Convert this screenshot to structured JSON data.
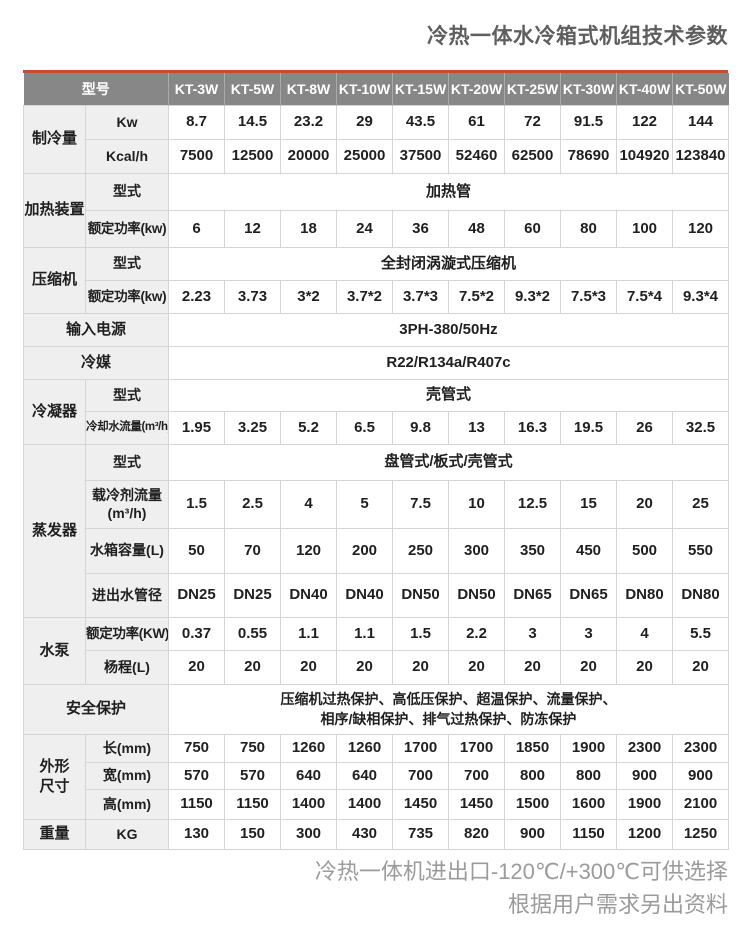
{
  "title": "冷热一体水冷箱式机组技术参数",
  "footer": {
    "line1": "冷热一体机进出口-120℃/+300℃可供选择",
    "line2": "根据用户需求另出资料"
  },
  "colors": {
    "accent": "#c94b28",
    "header_bg": "#878787",
    "header_text": "#ffffff",
    "label_bg": "#efefef",
    "border": "#d5d5d5",
    "title_text": "#5e5e5e",
    "footer_text": "#9b9b9b"
  },
  "table": {
    "header": {
      "model_label": "型号",
      "models": [
        "KT-3W",
        "KT-5W",
        "KT-8W",
        "KT-10W",
        "KT-15W",
        "KT-20W",
        "KT-25W",
        "KT-30W",
        "KT-40W",
        "KT-50W"
      ]
    },
    "rows": [
      {
        "name": "row-cooling-kw",
        "cells": [
          {
            "t": "制冷量",
            "c": "group",
            "rs": 2,
            "n": "label-cooling-capacity"
          },
          {
            "t": "Kw",
            "c": "sub",
            "n": "label-kw"
          },
          {
            "t": "8.7"
          },
          {
            "t": "14.5"
          },
          {
            "t": "23.2"
          },
          {
            "t": "29"
          },
          {
            "t": "43.5"
          },
          {
            "t": "61"
          },
          {
            "t": "72"
          },
          {
            "t": "91.5"
          },
          {
            "t": "122"
          },
          {
            "t": "144"
          }
        ]
      },
      {
        "name": "row-cooling-kcal",
        "cells": [
          {
            "t": "Kcal/h",
            "c": "sub",
            "n": "label-kcal"
          },
          {
            "t": "7500"
          },
          {
            "t": "12500"
          },
          {
            "t": "20000"
          },
          {
            "t": "25000"
          },
          {
            "t": "37500"
          },
          {
            "t": "52460"
          },
          {
            "t": "62500"
          },
          {
            "t": "78690"
          },
          {
            "t": "104920"
          },
          {
            "t": "123840"
          }
        ]
      },
      {
        "name": "row-heater-type",
        "cells": [
          {
            "t": "加热装置",
            "c": "group",
            "rs": 2,
            "n": "label-heater"
          },
          {
            "t": "型式",
            "c": "sub",
            "n": "label-type"
          },
          {
            "t": "加热管",
            "cs": 10,
            "n": "value-heater-type"
          }
        ]
      },
      {
        "name": "row-heater-power",
        "cells": [
          {
            "t": "额定功率(kw)",
            "c": "sub mid",
            "n": "label-rated-power"
          },
          {
            "t": "6"
          },
          {
            "t": "12"
          },
          {
            "t": "18"
          },
          {
            "t": "24"
          },
          {
            "t": "36"
          },
          {
            "t": "48"
          },
          {
            "t": "60"
          },
          {
            "t": "80"
          },
          {
            "t": "100"
          },
          {
            "t": "120"
          }
        ]
      },
      {
        "name": "row-compressor-type",
        "cells": [
          {
            "t": "压缩机",
            "c": "group",
            "rs": 2,
            "n": "label-compressor"
          },
          {
            "t": "型式",
            "c": "sub",
            "n": "label-type"
          },
          {
            "t": "全封闭涡漩式压缩机",
            "cs": 10,
            "n": "value-compressor-type"
          }
        ]
      },
      {
        "name": "row-compressor-power",
        "cells": [
          {
            "t": "额定功率(kw)",
            "c": "sub mid",
            "n": "label-rated-power"
          },
          {
            "t": "2.23"
          },
          {
            "t": "3.73"
          },
          {
            "t": "3*2"
          },
          {
            "t": "3.7*2"
          },
          {
            "t": "3.7*3"
          },
          {
            "t": "7.5*2"
          },
          {
            "t": "9.3*2"
          },
          {
            "t": "7.5*3"
          },
          {
            "t": "7.5*4"
          },
          {
            "t": "9.3*4"
          }
        ]
      },
      {
        "name": "row-input-power",
        "cells": [
          {
            "t": "输入电源",
            "c": "group",
            "cs": 2,
            "n": "label-input-power"
          },
          {
            "t": "3PH-380/50Hz",
            "cs": 10,
            "n": "value-input-power"
          }
        ]
      },
      {
        "name": "row-refrigerant",
        "cells": [
          {
            "t": "冷媒",
            "c": "group",
            "cs": 2,
            "n": "label-refrigerant"
          },
          {
            "t": "R22/R134a/R407c",
            "cs": 10,
            "n": "value-refrigerant"
          }
        ]
      },
      {
        "name": "row-condenser-type",
        "cells": [
          {
            "t": "冷凝器",
            "c": "group",
            "rs": 2,
            "n": "label-condenser"
          },
          {
            "t": "型式",
            "c": "sub",
            "n": "label-type"
          },
          {
            "t": "壳管式",
            "cs": 10,
            "n": "value-condenser-type"
          }
        ]
      },
      {
        "name": "row-condenser-flow",
        "cells": [
          {
            "t": "冷却水流量(m³/h)",
            "c": "sub small",
            "n": "label-cooling-water-flow"
          },
          {
            "t": "1.95"
          },
          {
            "t": "3.25"
          },
          {
            "t": "5.2"
          },
          {
            "t": "6.5"
          },
          {
            "t": "9.8"
          },
          {
            "t": "13"
          },
          {
            "t": "16.3"
          },
          {
            "t": "19.5"
          },
          {
            "t": "26"
          },
          {
            "t": "32.5"
          }
        ]
      },
      {
        "name": "row-evaporator-type",
        "cells": [
          {
            "t": "蒸发器",
            "c": "group",
            "rs": 4,
            "n": "label-evaporator"
          },
          {
            "t": "型式",
            "c": "sub",
            "n": "label-type"
          },
          {
            "t": "盘管式/板式/壳管式",
            "cs": 10,
            "n": "value-evaporator-type"
          }
        ]
      },
      {
        "name": "row-coolant-flow",
        "cells": [
          {
            "lines": [
              "载冷剂流量",
              "(m³/h)"
            ],
            "c": "sub pre",
            "n": "label-coolant-flow"
          },
          {
            "t": "1.5"
          },
          {
            "t": "2.5"
          },
          {
            "t": "4"
          },
          {
            "t": "5"
          },
          {
            "t": "7.5"
          },
          {
            "t": "10"
          },
          {
            "t": "12.5"
          },
          {
            "t": "15"
          },
          {
            "t": "20"
          },
          {
            "t": "25"
          }
        ]
      },
      {
        "name": "row-tank-capacity",
        "cells": [
          {
            "t": "水箱容量(L)",
            "c": "sub",
            "n": "label-tank-capacity"
          },
          {
            "t": "50"
          },
          {
            "t": "70"
          },
          {
            "t": "120"
          },
          {
            "t": "200"
          },
          {
            "t": "250"
          },
          {
            "t": "300"
          },
          {
            "t": "350"
          },
          {
            "t": "450"
          },
          {
            "t": "500"
          },
          {
            "t": "550"
          }
        ]
      },
      {
        "name": "row-pipe-diameter",
        "cells": [
          {
            "t": "进出水管径",
            "c": "sub",
            "n": "label-pipe-diameter"
          },
          {
            "t": "DN25"
          },
          {
            "t": "DN25"
          },
          {
            "t": "DN40"
          },
          {
            "t": "DN40"
          },
          {
            "t": "DN50"
          },
          {
            "t": "DN50"
          },
          {
            "t": "DN65"
          },
          {
            "t": "DN65"
          },
          {
            "t": "DN80"
          },
          {
            "t": "DN80"
          }
        ]
      },
      {
        "name": "row-pump-power",
        "cells": [
          {
            "t": "水泵",
            "c": "group",
            "rs": 2,
            "n": "label-pump"
          },
          {
            "t": "额定功率(KW)",
            "c": "sub mid",
            "n": "label-rated-power"
          },
          {
            "t": "0.37"
          },
          {
            "t": "0.55"
          },
          {
            "t": "1.1"
          },
          {
            "t": "1.1"
          },
          {
            "t": "1.5"
          },
          {
            "t": "2.2"
          },
          {
            "t": "3"
          },
          {
            "t": "3"
          },
          {
            "t": "4"
          },
          {
            "t": "5.5"
          }
        ]
      },
      {
        "name": "row-pump-head",
        "cells": [
          {
            "t": "杨程(L)",
            "c": "sub",
            "n": "label-pump-head"
          },
          {
            "t": "20"
          },
          {
            "t": "20"
          },
          {
            "t": "20"
          },
          {
            "t": "20"
          },
          {
            "t": "20"
          },
          {
            "t": "20"
          },
          {
            "t": "20"
          },
          {
            "t": "20"
          },
          {
            "t": "20"
          },
          {
            "t": "20"
          }
        ]
      },
      {
        "name": "row-safety",
        "cells": [
          {
            "t": "安全保护",
            "c": "group",
            "cs": 2,
            "n": "label-safety"
          },
          {
            "lines": [
              "压缩机过热保护、高低压保护、超温保护、流量保护、",
              "相序/缺相保护、排气过热保护、防冻保护"
            ],
            "cs": 10,
            "c": "safety pre",
            "n": "value-safety-protections"
          }
        ]
      },
      {
        "name": "row-dim-length",
        "cells": [
          {
            "lines": [
              "外形",
              "尺寸"
            ],
            "c": "group pre",
            "rs": 3,
            "n": "label-dimensions"
          },
          {
            "t": "长(mm)",
            "c": "sub",
            "n": "label-length"
          },
          {
            "t": "750"
          },
          {
            "t": "750"
          },
          {
            "t": "1260"
          },
          {
            "t": "1260"
          },
          {
            "t": "1700"
          },
          {
            "t": "1700"
          },
          {
            "t": "1850"
          },
          {
            "t": "1900"
          },
          {
            "t": "2300"
          },
          {
            "t": "2300"
          }
        ]
      },
      {
        "name": "row-dim-width",
        "cells": [
          {
            "t": "宽(mm)",
            "c": "sub",
            "n": "label-width"
          },
          {
            "t": "570"
          },
          {
            "t": "570"
          },
          {
            "t": "640"
          },
          {
            "t": "640"
          },
          {
            "t": "700"
          },
          {
            "t": "700"
          },
          {
            "t": "800"
          },
          {
            "t": "800"
          },
          {
            "t": "900"
          },
          {
            "t": "900"
          }
        ]
      },
      {
        "name": "row-dim-height",
        "cells": [
          {
            "t": "高(mm)",
            "c": "sub",
            "n": "label-height"
          },
          {
            "t": "1150"
          },
          {
            "t": "1150"
          },
          {
            "t": "1400"
          },
          {
            "t": "1400"
          },
          {
            "t": "1450"
          },
          {
            "t": "1450"
          },
          {
            "t": "1500"
          },
          {
            "t": "1600"
          },
          {
            "t": "1900"
          },
          {
            "t": "2100"
          }
        ]
      },
      {
        "name": "row-weight",
        "cells": [
          {
            "t": "重量",
            "c": "group",
            "n": "label-weight"
          },
          {
            "t": "KG",
            "c": "sub",
            "n": "label-kg"
          },
          {
            "t": "130"
          },
          {
            "t": "150"
          },
          {
            "t": "300"
          },
          {
            "t": "430"
          },
          {
            "t": "735"
          },
          {
            "t": "820"
          },
          {
            "t": "900"
          },
          {
            "t": "1150"
          },
          {
            "t": "1200"
          },
          {
            "t": "1250"
          }
        ]
      }
    ]
  }
}
